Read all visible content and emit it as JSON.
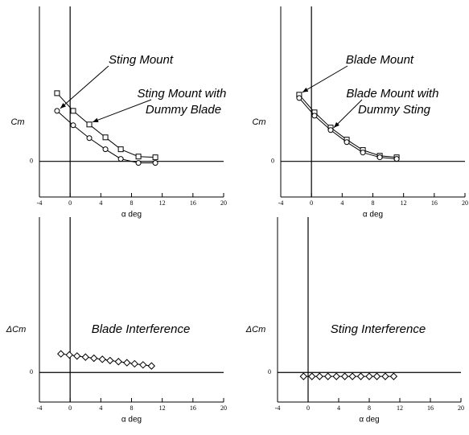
{
  "chart_data": [
    {
      "type": "line",
      "ylabel": "Cm",
      "xlabel": "α deg",
      "xlim": [
        -4,
        20
      ],
      "xticks": [
        -4,
        0,
        4,
        8,
        12,
        16,
        20
      ],
      "ylim": [
        -0.23,
        1.0
      ],
      "yticks": [
        0
      ],
      "series": [
        {
          "name": "Sting Mount",
          "marker": "circle",
          "color": "#000000",
          "x": [
            -1.7,
            0.4,
            2.5,
            4.6,
            6.6,
            8.9,
            11.1
          ],
          "values": [
            0.326,
            0.233,
            0.15,
            0.078,
            0.016,
            -0.01,
            -0.01
          ]
        },
        {
          "name": "Sting Mount with Dummy Blade",
          "marker": "square",
          "color": "#000000",
          "x": [
            -1.7,
            0.4,
            2.5,
            4.6,
            6.6,
            8.9,
            11.1
          ],
          "values": [
            0.44,
            0.326,
            0.238,
            0.155,
            0.078,
            0.031,
            0.026
          ]
        }
      ]
    },
    {
      "type": "line",
      "ylabel": "Cm",
      "xlabel": "α deg",
      "xlim": [
        -4,
        20
      ],
      "xticks": [
        -4,
        0,
        4,
        8,
        12,
        16,
        20
      ],
      "ylim": [
        -0.23,
        1.0
      ],
      "yticks": [
        0
      ],
      "series": [
        {
          "name": "Blade Mount",
          "marker": "square",
          "color": "#000000",
          "x": [
            -1.6,
            0.4,
            2.5,
            4.6,
            6.7,
            8.9,
            11.1
          ],
          "values": [
            0.43,
            0.316,
            0.218,
            0.14,
            0.073,
            0.036,
            0.026
          ]
        },
        {
          "name": "Blade Mount with Dummy Sting",
          "marker": "circle",
          "color": "#000000",
          "x": [
            -1.6,
            0.4,
            2.5,
            4.6,
            6.7,
            8.9,
            11.1
          ],
          "values": [
            0.409,
            0.295,
            0.202,
            0.124,
            0.057,
            0.026,
            0.016
          ]
        }
      ]
    },
    {
      "type": "line",
      "ylabel": "ΔCm",
      "xlabel": "α deg",
      "xlim": [
        -4,
        20
      ],
      "xticks": [
        -4,
        0,
        4,
        8,
        12,
        16,
        20
      ],
      "ylim": [
        -0.19,
        1.0
      ],
      "yticks": [
        0
      ],
      "annotation": "Blade Interference",
      "series": [
        {
          "marker": "diamond",
          "color": "#000000",
          "x": [
            -1.2,
            -0.1,
            0.9,
            2.0,
            3.1,
            4.2,
            5.2,
            6.3,
            7.4,
            8.4,
            9.5,
            10.6
          ],
          "values": [
            0.12,
            0.113,
            0.106,
            0.099,
            0.092,
            0.085,
            0.077,
            0.07,
            0.063,
            0.056,
            0.049,
            0.042
          ]
        }
      ]
    },
    {
      "type": "line",
      "ylabel": "ΔCm",
      "xlabel": "α deg",
      "xlim": [
        -4,
        20
      ],
      "xticks": [
        -4,
        0,
        4,
        8,
        12,
        16,
        20
      ],
      "ylim": [
        -0.19,
        1.0
      ],
      "yticks": [
        0
      ],
      "annotation": "Sting Interference",
      "series": [
        {
          "marker": "diamond",
          "color": "#000000",
          "x": [
            -0.6,
            0.5,
            1.5,
            2.6,
            3.7,
            4.8,
            5.8,
            6.9,
            8.0,
            9.0,
            10.1,
            11.2
          ],
          "values": [
            -0.025,
            -0.025,
            -0.025,
            -0.025,
            -0.025,
            -0.025,
            -0.025,
            -0.025,
            -0.025,
            -0.025,
            -0.025,
            -0.025
          ]
        }
      ]
    }
  ]
}
